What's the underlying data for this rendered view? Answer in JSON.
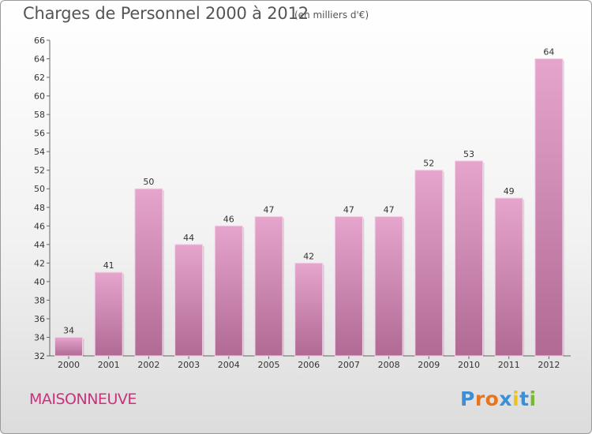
{
  "header": {
    "title": "Charges de Personnel 2000 à 2012",
    "subtitle": "(en milliers d'€)"
  },
  "footer": {
    "commune": "MAISONNEUVE",
    "logo_text": "Proxiti"
  },
  "colors": {
    "bar_top": "#e6a5cd",
    "bar_bottom": "#b06a94",
    "commune_text": "#c8337c",
    "logo_letters": [
      "#3b8fd6",
      "#e8741c",
      "#e8741c",
      "#3b8fd6",
      "#e8c41c",
      "#3b8fd6",
      "#7ab833"
    ]
  },
  "chart_data": {
    "type": "bar",
    "categories": [
      "2000",
      "2001",
      "2002",
      "2003",
      "2004",
      "2005",
      "2006",
      "2007",
      "2008",
      "2009",
      "2010",
      "2011",
      "2012"
    ],
    "values": [
      34,
      41,
      50,
      44,
      46,
      47,
      42,
      47,
      47,
      52,
      53,
      49,
      64
    ],
    "ylim": [
      32,
      66
    ],
    "ytick_step": 2,
    "grid": false,
    "title": "Charges de Personnel 2000 à 2012",
    "subtitle": "(en milliers d'€)",
    "xlabel": "",
    "ylabel": ""
  }
}
